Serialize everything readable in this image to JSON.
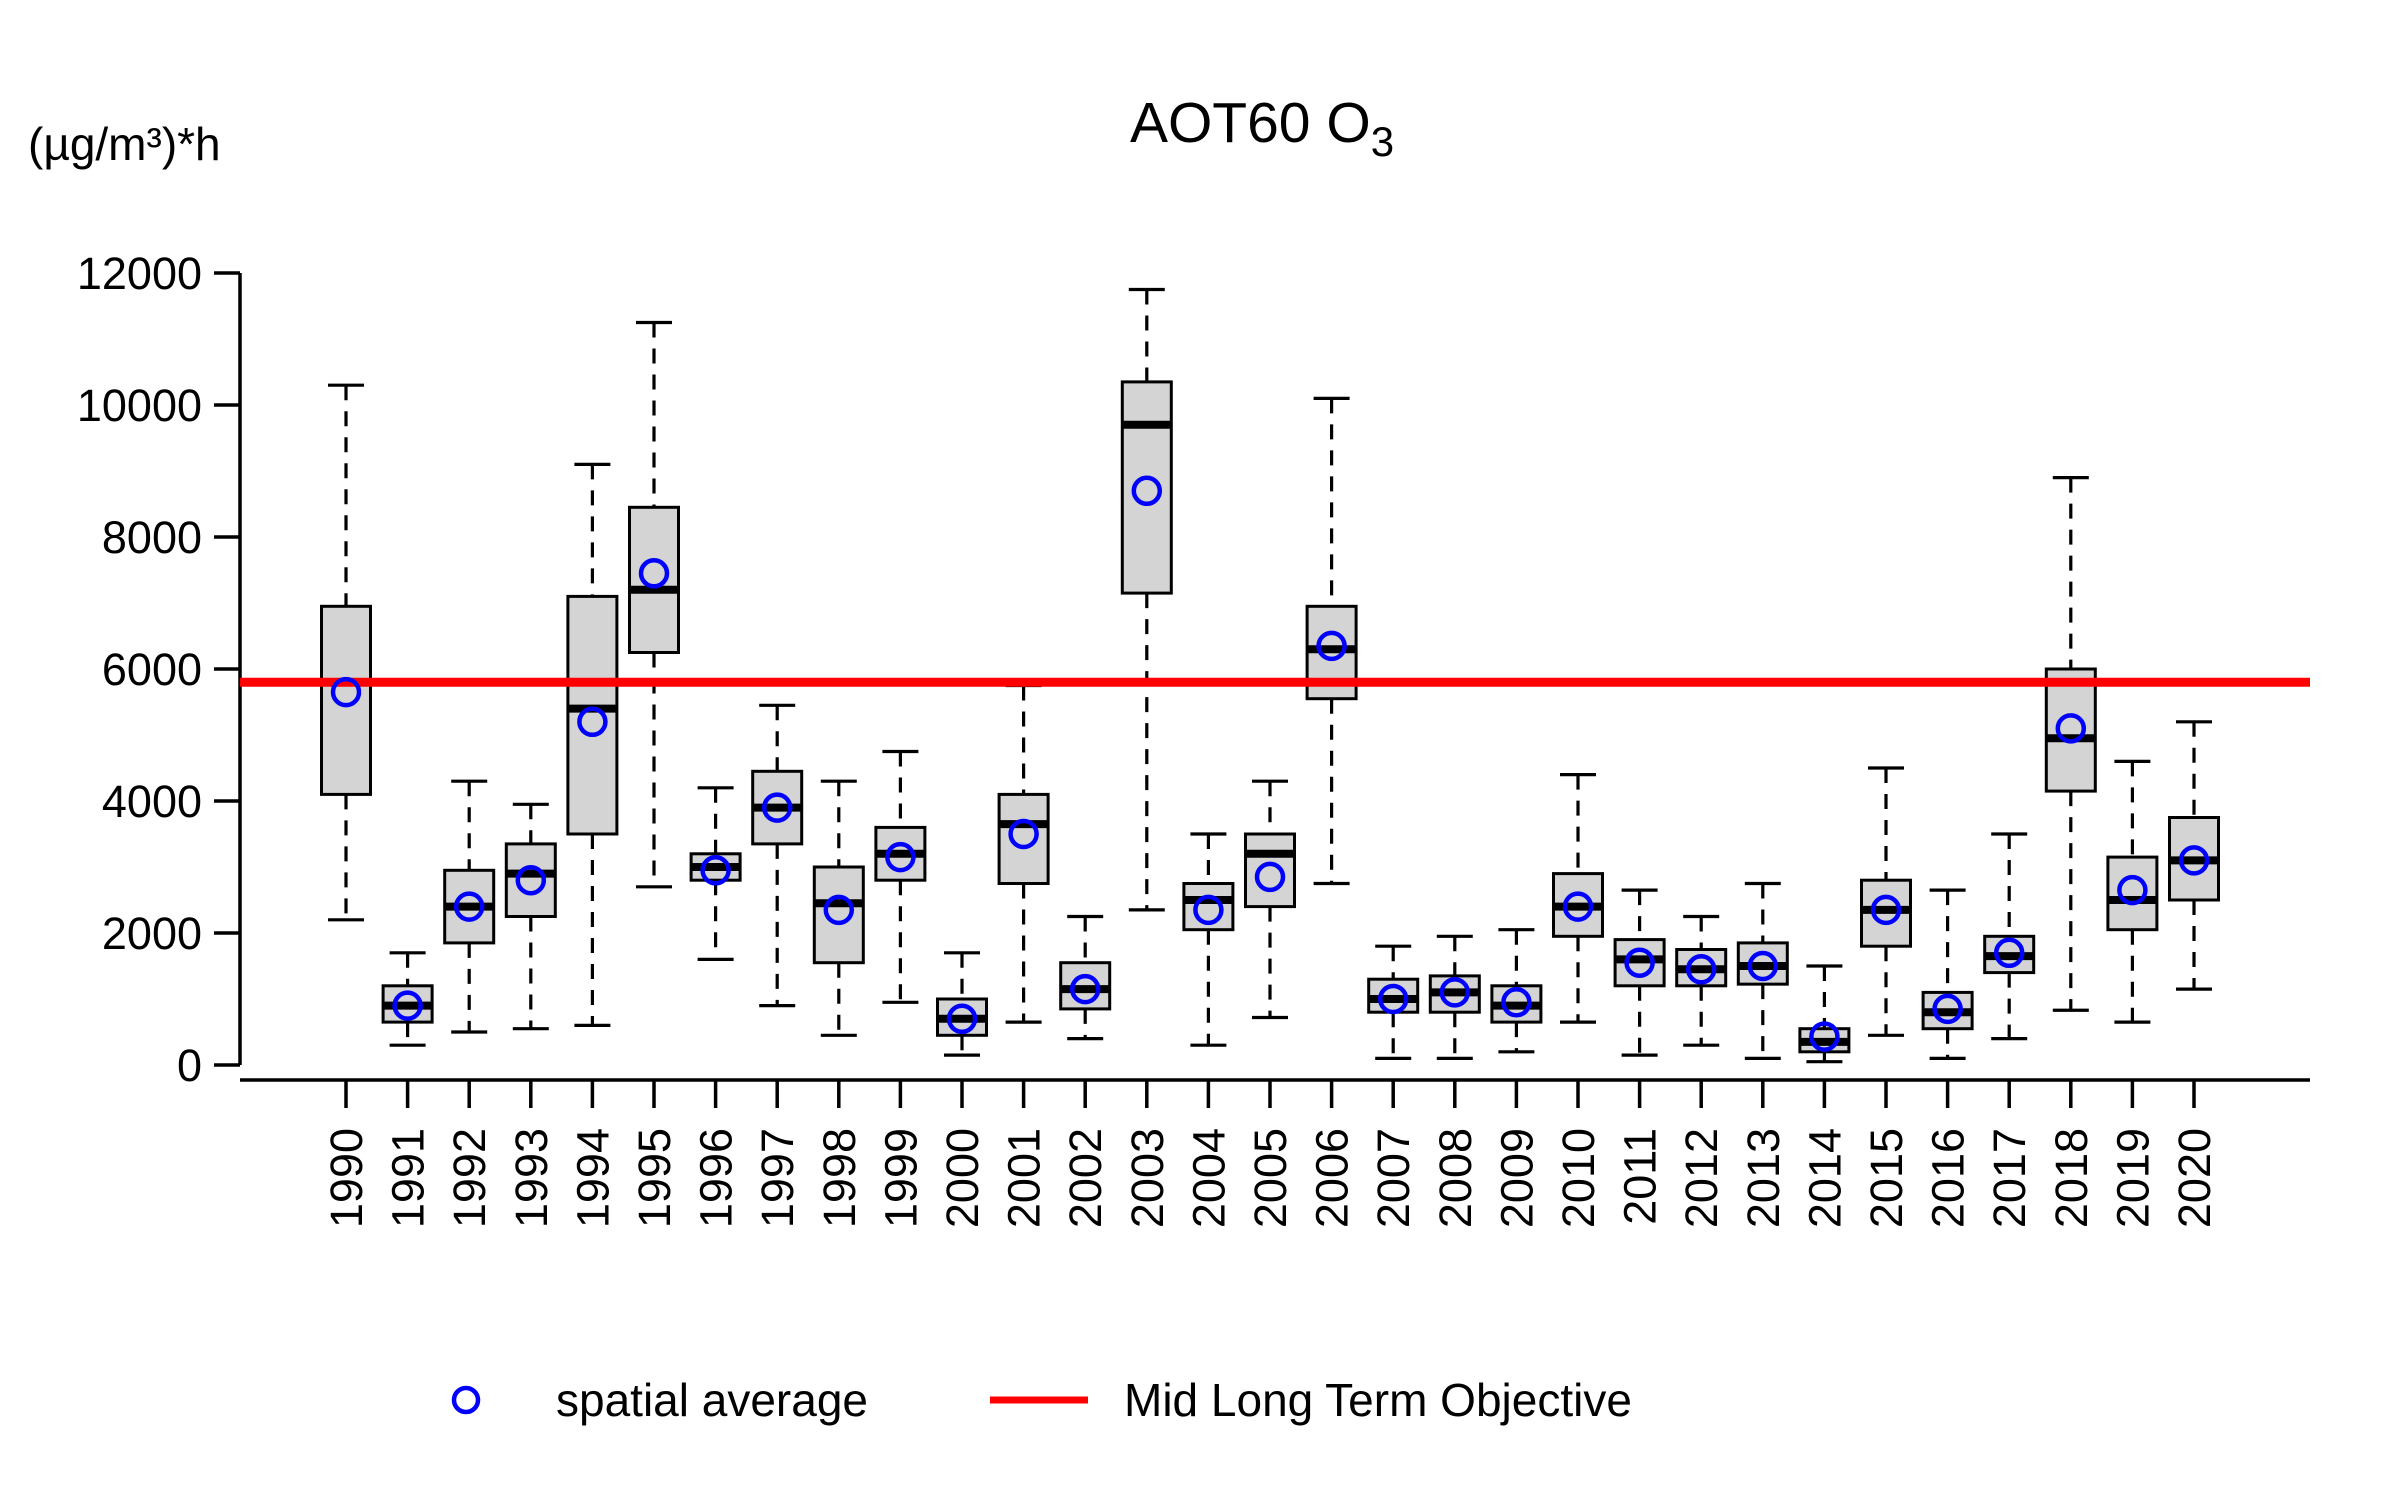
{
  "figure": {
    "background": "#FFFFFF"
  },
  "chart_data": {
    "type": "boxplot",
    "title_main": "AOT60 O",
    "title_sub": "3",
    "unit_label": "(µg/m³)*h",
    "y_axis": {
      "min": 0,
      "max": 12000,
      "tick_step": 2000,
      "tick_labels": [
        "0",
        "2000",
        "4000",
        "6000",
        "8000",
        "10000",
        "12000"
      ]
    },
    "reference_line": {
      "label": "Mid Long Term Objective",
      "value": 5800,
      "color": "#FF0000"
    },
    "legend": {
      "point_label": "spatial average",
      "point_color": "#0000FF",
      "line_label": "Mid Long Term Objective",
      "line_color": "#FF0000"
    },
    "style": {
      "box_fill": "#D4D4D4",
      "stroke": "#000000",
      "mean_color": "#0000FF"
    },
    "x_categories": [
      "1990",
      "1991",
      "1992",
      "1993",
      "1994",
      "1995",
      "1996",
      "1997",
      "1998",
      "1999",
      "2000",
      "2001",
      "2002",
      "2003",
      "2004",
      "2005",
      "2006",
      "2007",
      "2008",
      "2009",
      "2010",
      "2011",
      "2012",
      "2013",
      "2014",
      "2015",
      "2016",
      "2017",
      "2018",
      "2019",
      "2020"
    ],
    "series": [
      {
        "year": "1990",
        "whisker_low": 2200,
        "q1": 4100,
        "median": 5800,
        "q3": 6950,
        "whisker_high": 10300,
        "spatial_average": 5650
      },
      {
        "year": "1991",
        "whisker_low": 300,
        "q1": 650,
        "median": 900,
        "q3": 1200,
        "whisker_high": 1700,
        "spatial_average": 900
      },
      {
        "year": "1992",
        "whisker_low": 500,
        "q1": 1850,
        "median": 2400,
        "q3": 2950,
        "whisker_high": 4300,
        "spatial_average": 2400
      },
      {
        "year": "1993",
        "whisker_low": 550,
        "q1": 2250,
        "median": 2900,
        "q3": 3350,
        "whisker_high": 3950,
        "spatial_average": 2800
      },
      {
        "year": "1994",
        "whisker_low": 600,
        "q1": 3500,
        "median": 5400,
        "q3": 7100,
        "whisker_high": 9100,
        "spatial_average": 5200
      },
      {
        "year": "1995",
        "whisker_low": 2700,
        "q1": 6250,
        "median": 7200,
        "q3": 8450,
        "whisker_high": 11250,
        "spatial_average": 7450
      },
      {
        "year": "1996",
        "whisker_low": 1600,
        "q1": 2800,
        "median": 3000,
        "q3": 3200,
        "whisker_high": 4200,
        "spatial_average": 2950
      },
      {
        "year": "1997",
        "whisker_low": 900,
        "q1": 3350,
        "median": 3900,
        "q3": 4450,
        "whisker_high": 5450,
        "spatial_average": 3900
      },
      {
        "year": "1998",
        "whisker_low": 450,
        "q1": 1550,
        "median": 2450,
        "q3": 3000,
        "whisker_high": 4300,
        "spatial_average": 2350
      },
      {
        "year": "1999",
        "whisker_low": 950,
        "q1": 2800,
        "median": 3200,
        "q3": 3600,
        "whisker_high": 4750,
        "spatial_average": 3150
      },
      {
        "year": "2000",
        "whisker_low": 150,
        "q1": 450,
        "median": 700,
        "q3": 1000,
        "whisker_high": 1700,
        "spatial_average": 700
      },
      {
        "year": "2001",
        "whisker_low": 650,
        "q1": 2750,
        "median": 3650,
        "q3": 4100,
        "whisker_high": 5750,
        "spatial_average": 3500
      },
      {
        "year": "2002",
        "whisker_low": 400,
        "q1": 850,
        "median": 1150,
        "q3": 1550,
        "whisker_high": 2250,
        "spatial_average": 1150
      },
      {
        "year": "2003",
        "whisker_low": 2350,
        "q1": 7150,
        "median": 9700,
        "q3": 10350,
        "whisker_high": 11750,
        "spatial_average": 8700
      },
      {
        "year": "2004",
        "whisker_low": 300,
        "q1": 2050,
        "median": 2500,
        "q3": 2750,
        "whisker_high": 3500,
        "spatial_average": 2350
      },
      {
        "year": "2005",
        "whisker_low": 720,
        "q1": 2400,
        "median": 3200,
        "q3": 3500,
        "whisker_high": 4300,
        "spatial_average": 2850
      },
      {
        "year": "2006",
        "whisker_low": 2750,
        "q1": 5550,
        "median": 6300,
        "q3": 6950,
        "whisker_high": 10100,
        "spatial_average": 6350
      },
      {
        "year": "2007",
        "whisker_low": 100,
        "q1": 800,
        "median": 1000,
        "q3": 1300,
        "whisker_high": 1800,
        "spatial_average": 1000
      },
      {
        "year": "2008",
        "whisker_low": 100,
        "q1": 800,
        "median": 1100,
        "q3": 1350,
        "whisker_high": 1950,
        "spatial_average": 1100
      },
      {
        "year": "2009",
        "whisker_low": 200,
        "q1": 650,
        "median": 900,
        "q3": 1200,
        "whisker_high": 2050,
        "spatial_average": 950
      },
      {
        "year": "2010",
        "whisker_low": 650,
        "q1": 1950,
        "median": 2400,
        "q3": 2900,
        "whisker_high": 4400,
        "spatial_average": 2400
      },
      {
        "year": "2011",
        "whisker_low": 150,
        "q1": 1200,
        "median": 1600,
        "q3": 1900,
        "whisker_high": 2650,
        "spatial_average": 1550
      },
      {
        "year": "2012",
        "whisker_low": 300,
        "q1": 1200,
        "median": 1450,
        "q3": 1750,
        "whisker_high": 2250,
        "spatial_average": 1450
      },
      {
        "year": "2013",
        "whisker_low": 100,
        "q1": 1225,
        "median": 1500,
        "q3": 1850,
        "whisker_high": 2750,
        "spatial_average": 1500
      },
      {
        "year": "2014",
        "whisker_low": 50,
        "q1": 200,
        "median": 350,
        "q3": 550,
        "whisker_high": 1500,
        "spatial_average": 430
      },
      {
        "year": "2015",
        "whisker_low": 450,
        "q1": 1800,
        "median": 2350,
        "q3": 2800,
        "whisker_high": 4500,
        "spatial_average": 2350
      },
      {
        "year": "2016",
        "whisker_low": 100,
        "q1": 550,
        "median": 800,
        "q3": 1100,
        "whisker_high": 2650,
        "spatial_average": 850
      },
      {
        "year": "2017",
        "whisker_low": 400,
        "q1": 1400,
        "median": 1650,
        "q3": 1950,
        "whisker_high": 3500,
        "spatial_average": 1700
      },
      {
        "year": "2018",
        "whisker_low": 830,
        "q1": 4150,
        "median": 4950,
        "q3": 6000,
        "whisker_high": 8900,
        "spatial_average": 5100
      },
      {
        "year": "2019",
        "whisker_low": 650,
        "q1": 2050,
        "median": 2500,
        "q3": 3150,
        "whisker_high": 4600,
        "spatial_average": 2650
      },
      {
        "year": "2020",
        "whisker_low": 1150,
        "q1": 2500,
        "median": 3100,
        "q3": 3750,
        "whisker_high": 5200,
        "spatial_average": 3100
      }
    ]
  }
}
